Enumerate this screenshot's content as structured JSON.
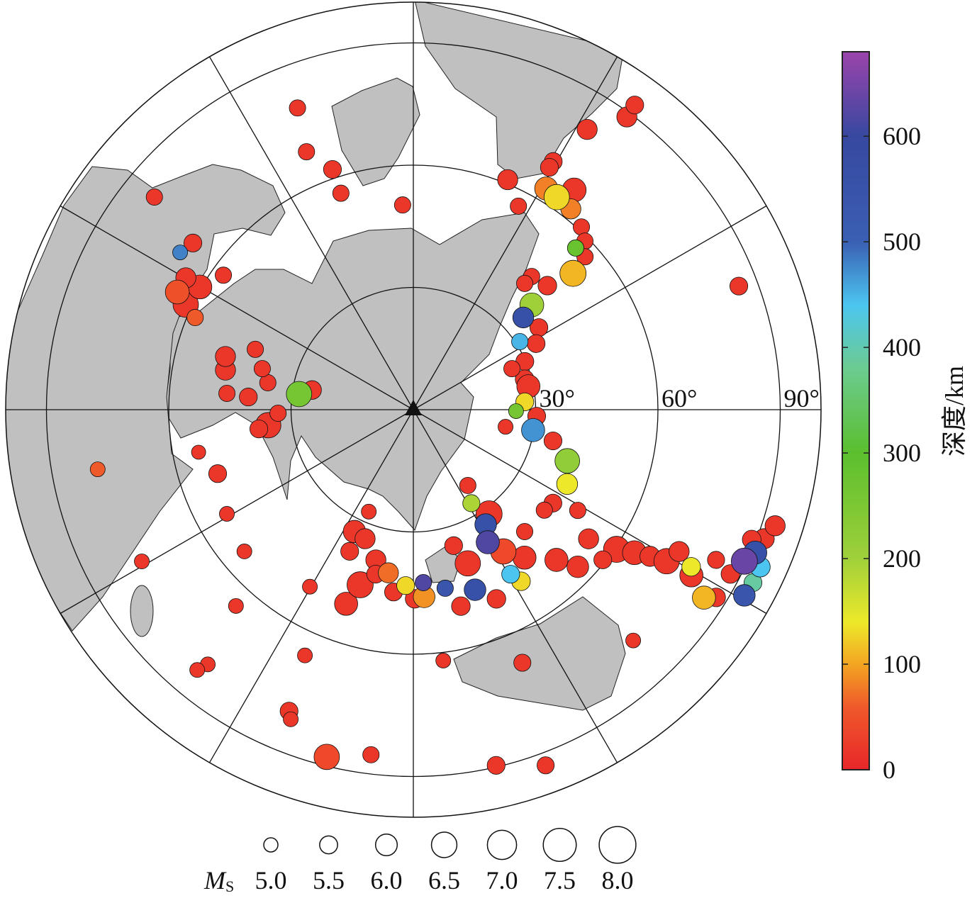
{
  "chart_data": {
    "type": "scatter",
    "projection": "azimuthal equidistant, centered on station (triangle)",
    "coordinates": "epicentral distance (deg) and azimuth (deg clockwise from north)",
    "max_distance_deg": 100,
    "distance_rings_deg": [
      30,
      60,
      90
    ],
    "distance_ring_labels": [
      "30°",
      "60°",
      "90°"
    ],
    "azimuth_spokes_every_deg": 30,
    "land_color": "#c0c0c0",
    "center_marker": "triangle",
    "colorbar": {
      "label": "深度/km",
      "range": [
        0,
        680
      ],
      "ticks": [
        0,
        100,
        200,
        300,
        400,
        500,
        600
      ],
      "tick_labels": [
        "0",
        "100",
        "200",
        "300",
        "400",
        "500",
        "600"
      ],
      "colormap": [
        {
          "depth": 0,
          "color": "#e8262a"
        },
        {
          "depth": 60,
          "color": "#ef5a2a"
        },
        {
          "depth": 100,
          "color": "#f3a522"
        },
        {
          "depth": 140,
          "color": "#ede92a"
        },
        {
          "depth": 200,
          "color": "#9fd03a"
        },
        {
          "depth": 300,
          "color": "#5bbf2e"
        },
        {
          "depth": 380,
          "color": "#6ccb90"
        },
        {
          "depth": 440,
          "color": "#4cc6f0"
        },
        {
          "depth": 500,
          "color": "#3a5fb4"
        },
        {
          "depth": 600,
          "color": "#3748a0"
        },
        {
          "depth": 680,
          "color": "#9b44ab"
        }
      ]
    },
    "size_legend": {
      "label": "M",
      "label_sub": "S",
      "magnitudes": [
        5.0,
        5.5,
        6.0,
        6.5,
        7.0,
        7.5,
        8.0
      ],
      "labels": [
        "5.0",
        "5.5",
        "6.0",
        "6.5",
        "7.0",
        "7.5",
        "8.0"
      ]
    },
    "event_fields": [
      "distance_deg",
      "azimuth_deg",
      "magnitude",
      "depth_km"
    ],
    "events": [
      [
        79.3,
        339,
        5.3,
        20
      ],
      [
        68.5,
        337.5,
        5.3,
        20
      ],
      [
        62.2,
        341.4,
        5.5,
        20
      ],
      [
        56,
        341.5,
        5.3,
        20
      ],
      [
        50.3,
        357,
        5.3,
        20
      ],
      [
        61,
        22.3,
        5.8,
        20
      ],
      [
        56.2,
        27.3,
        5.3,
        20
      ],
      [
        69.9,
        29.4,
        5.5,
        20
      ],
      [
        68.2,
        29.3,
        5.5,
        20
      ],
      [
        63.3,
        31,
        6.2,
        80
      ],
      [
        62.9,
        34,
        6.5,
        130
      ],
      [
        66.8,
        36.2,
        6.3,
        20
      ],
      [
        62.6,
        38.1,
        5.8,
        80
      ],
      [
        80.9,
        31.8,
        5.8,
        20
      ],
      [
        88.9,
        36.1,
        5.8,
        20
      ],
      [
        92.4,
        36,
        5.5,
        20
      ],
      [
        60.9,
        42.6,
        5.3,
        20
      ],
      [
        59,
        45.5,
        5.3,
        20
      ],
      [
        56.2,
        45.1,
        5.3,
        280
      ],
      [
        56.4,
        48.3,
        5.3,
        20
      ],
      [
        51.5,
        49.5,
        6.6,
        110
      ],
      [
        85.4,
        69.2,
        5.5,
        20
      ],
      [
        44.8,
        47.2,
        5.6,
        20
      ],
      [
        43.7,
        41.6,
        5.3,
        20
      ],
      [
        41.3,
        41.4,
        5.3,
        20
      ],
      [
        38.8,
        48.5,
        6.3,
        200
      ],
      [
        35.2,
        50,
        5.9,
        560
      ],
      [
        36.8,
        56.8,
        5.5,
        20
      ],
      [
        31,
        57.4,
        5.3,
        450
      ],
      [
        34.2,
        61.7,
        5.5,
        20
      ],
      [
        29.8,
        66.6,
        5.5,
        20
      ],
      [
        28.3,
        74.7,
        5.6,
        20
      ],
      [
        26.2,
        67.4,
        5.3,
        20
      ],
      [
        28.8,
        78.5,
        6.2,
        20
      ],
      [
        27.4,
        86,
        5.5,
        130
      ],
      [
        25.2,
        90.8,
        5.1,
        260
      ],
      [
        30.3,
        93,
        5.5,
        20
      ],
      [
        29.8,
        99.7,
        6.2,
        470
      ],
      [
        23,
        100.5,
        5.1,
        20
      ],
      [
        35.1,
        102.6,
        5.5,
        20
      ],
      [
        39.8,
        108.4,
        6.4,
        220
      ],
      [
        41.9,
        115.8,
        5.9,
        140
      ],
      [
        41.2,
        123.8,
        5.5,
        20
      ],
      [
        47.3,
        121.5,
        5.3,
        20
      ],
      [
        53.4,
        126.4,
        5.8,
        20
      ],
      [
        60.5,
        124.5,
        6.6,
        20
      ],
      [
        64.6,
        122.9,
        6.3,
        20
      ],
      [
        68.3,
        121.8,
        5.8,
        20
      ],
      [
        72.4,
        120.9,
        6.5,
        20
      ],
      [
        73.9,
        118.1,
        5.8,
        20
      ],
      [
        78.3,
        119.5,
        5.6,
        140
      ],
      [
        79.4,
        120.8,
        6.2,
        20
      ],
      [
        84.9,
        122.9,
        6.2,
        110
      ],
      [
        82.9,
        116.4,
        5.4,
        20
      ],
      [
        87.4,
        121.8,
        5.6,
        20
      ],
      [
        89.3,
        114.6,
        6.6,
        640
      ],
      [
        90.9,
        112.7,
        6.2,
        560
      ],
      [
        93.4,
        114.4,
        5.8,
        440
      ],
      [
        93.5,
        117,
        5.5,
        390
      ],
      [
        93.1,
        119.3,
        6.0,
        540
      ],
      [
        91.7,
        110.2,
        5.8,
        20
      ],
      [
        93.2,
        107.8,
        5.8,
        20
      ],
      [
        88.9,
        111,
        5.6,
        20
      ],
      [
        87.6,
        117.4,
        5.6,
        20
      ],
      [
        78.2,
        136.4,
        5.1,
        20
      ],
      [
        67.6,
        156.7,
        5.4,
        20
      ],
      [
        62,
        173.2,
        5.1,
        20
      ],
      [
        93.1,
        159.6,
        5.4,
        20
      ],
      [
        89.6,
        166.9,
        5.5,
        20
      ],
      [
        85.3,
        187,
        5.3,
        20
      ],
      [
        87.8,
        194,
        6.5,
        40
      ],
      [
        80,
        202.4,
        5.5,
        20
      ],
      [
        81.7,
        201.6,
        5.1,
        20
      ],
      [
        65.9,
        203.8,
        5.1,
        20
      ],
      [
        80.3,
        218.9,
        5.1,
        20
      ],
      [
        83,
        219.7,
        5.1,
        20
      ],
      [
        64.9,
        222.1,
        5.1,
        20
      ],
      [
        50.3,
        210.3,
        5.1,
        20
      ],
      [
        50.4,
        199.1,
        6.2,
        20
      ],
      [
        44.9,
        196.9,
        6.6,
        20
      ],
      [
        54.1,
        230,
        5.1,
        20
      ],
      [
        76.3,
        240.8,
        5.1,
        20
      ],
      [
        52.4,
        240.8,
        5.1,
        20
      ],
      [
        50.5,
        251.9,
        5.5,
        20
      ],
      [
        53.7,
        258.8,
        5.0,
        20
      ],
      [
        78.8,
        259.3,
        5.1,
        60
      ],
      [
        35.8,
        263.9,
        6.5,
        20
      ],
      [
        38.2,
        262.9,
        5.5,
        20
      ],
      [
        33.2,
        268.5,
        5.3,
        20
      ],
      [
        28.3,
        277.8,
        6.5,
        260
      ],
      [
        25.3,
        281,
        5.6,
        20
      ],
      [
        40.6,
        274.4,
        5.5,
        20
      ],
      [
        45.9,
        275,
        5.3,
        20
      ],
      [
        47.1,
        281.9,
        5.8,
        20
      ],
      [
        47.9,
        285.8,
        5.8,
        20
      ],
      [
        36.3,
        280.5,
        5.3,
        20
      ],
      [
        38.4,
        285.2,
        5.3,
        20
      ],
      [
        41.5,
        290.9,
        5.3,
        20
      ],
      [
        57.1,
        305.3,
        5.3,
        20
      ],
      [
        58.1,
        292.9,
        5.3,
        60
      ],
      [
        61.5,
        294.8,
        6.5,
        20
      ],
      [
        64.7,
        296.5,
        6.3,
        50
      ],
      [
        60.4,
        299.9,
        6.3,
        20
      ],
      [
        64.5,
        300.1,
        5.8,
        20
      ],
      [
        67.8,
        307.1,
        5.5,
        20
      ],
      [
        69,
        304,
        5.1,
        480
      ],
      [
        82.2,
        309.4,
        5.3,
        20
      ],
      [
        27.3,
        203.6,
        5.1,
        20
      ],
      [
        33.2,
        205.8,
        6.1,
        20
      ],
      [
        33.8,
        200.5,
        5.8,
        20
      ],
      [
        38.1,
        204.2,
        5.5,
        20
      ],
      [
        38,
        194,
        5.8,
        20
      ],
      [
        40.5,
        188.7,
        5.8,
        70
      ],
      [
        41.4,
        192.9,
        5.5,
        20
      ],
      [
        43.2,
        182.5,
        5.5,
        130
      ],
      [
        42.5,
        176.7,
        5.3,
        620
      ],
      [
        46,
        176.7,
        6.0,
        90
      ],
      [
        45,
        186.2,
        5.5,
        20
      ],
      [
        46.4,
        179.6,
        5.6,
        20
      ],
      [
        44.5,
        169.9,
        5.3,
        540
      ],
      [
        49.6,
        166.4,
        5.6,
        20
      ],
      [
        46.7,
        161.1,
        6.0,
        560
      ],
      [
        50.7,
        156.3,
        5.6,
        20
      ],
      [
        49.7,
        147.9,
        5.6,
        130
      ],
      [
        46.9,
        149.4,
        5.5,
        440
      ],
      [
        45.4,
        143.1,
        6.2,
        20
      ],
      [
        41.2,
        147.6,
        6.5,
        40
      ],
      [
        37.3,
        150.7,
        6.2,
        620
      ],
      [
        33.3,
        147.8,
        6.0,
        560
      ],
      [
        27,
        148.2,
        5.4,
        190
      ],
      [
        22.9,
        144.3,
        5.3,
        20
      ],
      [
        31.6,
        144,
        6.6,
        20
      ],
      [
        40,
        160.5,
        6.5,
        20
      ],
      [
        34.8,
        163.5,
        5.5,
        20
      ],
      [
        40.5,
        137.6,
        5.3,
        20
      ],
      [
        40.5,
        127.5,
        5.3,
        20
      ],
      [
        50.9,
        136.4,
        6.2,
        20
      ],
      [
        55.8,
        133.7,
        6.0,
        20
      ],
      [
        59.3,
        128.4,
        5.5,
        20
      ]
    ]
  }
}
